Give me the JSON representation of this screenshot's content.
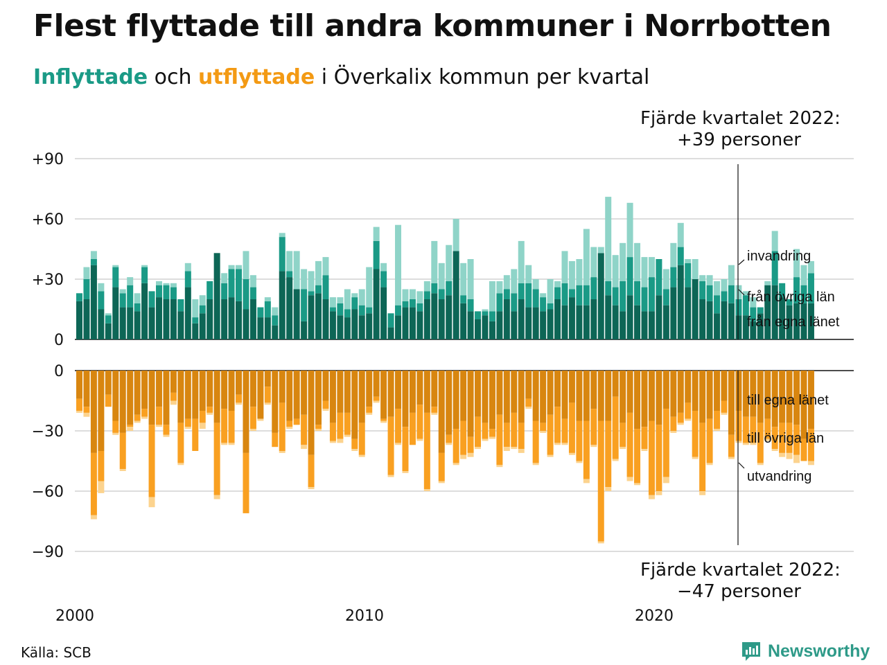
{
  "title": "Flest flyttade till andra kommuner i Norrbotten",
  "subtitle": {
    "part1": "Inflyttade",
    "part2": " och ",
    "part3": "utflyttade",
    "part4": " i Överkalix kommun per kvartal"
  },
  "annotation_top": {
    "line1": "Fjärde kvartalet 2022:",
    "line2": "+39 personer"
  },
  "annotation_bottom": {
    "line1": "Fjärde kvartalet 2022:",
    "line2": "−47 personer"
  },
  "source": "Källa: SCB",
  "brand": "Newsworthy",
  "colors": {
    "in_own_county": "#0d6656",
    "in_other_county": "#1a9a86",
    "in_immigration": "#8fd4c8",
    "out_own_county": "#d88610",
    "out_other_county": "#f9a021",
    "out_emigration": "#fcd38e",
    "brand": "#2e9a88"
  },
  "chart_data": {
    "type": "bar",
    "stacked": true,
    "x_start": "2000 Q1",
    "x_end": "2022 Q4",
    "x_ticks": [
      "2000",
      "2010",
      "2020"
    ],
    "top_panel": {
      "y_ticks": [
        "+90",
        "+60",
        "+30",
        "0"
      ],
      "ylim": [
        0,
        90
      ],
      "series": [
        {
          "name": "från egna länet",
          "values": [
            19,
            20,
            37,
            15,
            8,
            26,
            16,
            16,
            14,
            28,
            16,
            21,
            20,
            20,
            14,
            26,
            8,
            13,
            20,
            43,
            20,
            21,
            19,
            15,
            20,
            11,
            11,
            7,
            34,
            31,
            25,
            9,
            22,
            23,
            20,
            14,
            12,
            11,
            15,
            12,
            13,
            35,
            26,
            6,
            12,
            16,
            16,
            14,
            20,
            23,
            20,
            22,
            44,
            18,
            14,
            10,
            12,
            9,
            14,
            20,
            14,
            20,
            16,
            16,
            14,
            15,
            20,
            17,
            21,
            17,
            17,
            20,
            43,
            22,
            17,
            14,
            22,
            17,
            14,
            14,
            22,
            17,
            26,
            37,
            26,
            30,
            20,
            19,
            13,
            19,
            18,
            12,
            12,
            9,
            13,
            27,
            27,
            21,
            17,
            18,
            18,
            18
          ]
        },
        {
          "name": "från övriga län",
          "values": [
            4,
            10,
            3,
            9,
            4,
            10,
            7,
            11,
            4,
            8,
            8,
            6,
            7,
            6,
            6,
            8,
            3,
            4,
            9,
            0,
            8,
            14,
            16,
            15,
            6,
            5,
            8,
            5,
            17,
            3,
            0,
            16,
            2,
            4,
            12,
            2,
            6,
            4,
            6,
            5,
            3,
            14,
            8,
            7,
            5,
            3,
            4,
            4,
            4,
            5,
            5,
            7,
            0,
            4,
            6,
            4,
            2,
            5,
            9,
            5,
            9,
            8,
            12,
            9,
            7,
            3,
            6,
            11,
            4,
            10,
            10,
            11,
            0,
            7,
            9,
            15,
            19,
            12,
            12,
            17,
            18,
            8,
            10,
            9,
            12,
            0,
            9,
            8,
            9,
            5,
            9,
            8,
            10,
            7,
            3,
            0,
            17,
            7,
            3,
            13,
            9,
            15
          ]
        },
        {
          "name": "invandring",
          "values": [
            0,
            6,
            4,
            4,
            1,
            1,
            2,
            4,
            5,
            1,
            0,
            2,
            1,
            2,
            0,
            4,
            9,
            5,
            0,
            0,
            5,
            2,
            2,
            14,
            6,
            0,
            2,
            4,
            2,
            10,
            19,
            10,
            10,
            12,
            9,
            5,
            3,
            10,
            2,
            8,
            20,
            7,
            4,
            0,
            40,
            6,
            5,
            6,
            5,
            21,
            13,
            18,
            16,
            16,
            20,
            0,
            1,
            15,
            6,
            7,
            12,
            21,
            9,
            5,
            2,
            12,
            3,
            16,
            14,
            13,
            28,
            15,
            3,
            42,
            16,
            19,
            27,
            19,
            15,
            10,
            0,
            10,
            12,
            12,
            2,
            10,
            3,
            5,
            7,
            6,
            10,
            7,
            2,
            5,
            0,
            2,
            10,
            0,
            0,
            14,
            10,
            6
          ]
        }
      ]
    },
    "bottom_panel": {
      "y_ticks": [
        "0",
        "−30",
        "−60",
        "−90"
      ],
      "ylim": [
        -90,
        0
      ],
      "series": [
        {
          "name": "till egna länet",
          "values": [
            -14,
            -18,
            -41,
            -40,
            -12,
            -25,
            -31,
            -27,
            -22,
            -19,
            -27,
            -18,
            -27,
            -11,
            -26,
            -24,
            -24,
            -20,
            -18,
            -26,
            -19,
            -20,
            -12,
            -41,
            -18,
            -24,
            -8,
            -31,
            -16,
            -25,
            -24,
            -22,
            -42,
            -27,
            -15,
            -26,
            -21,
            -21,
            -34,
            -26,
            -18,
            -13,
            -24,
            -23,
            -19,
            -28,
            -21,
            -17,
            -21,
            -18,
            -41,
            -32,
            -29,
            -25,
            -33,
            -23,
            -26,
            -29,
            -22,
            -26,
            -21,
            -26,
            -14,
            -25,
            -26,
            -22,
            -18,
            -24,
            -16,
            -25,
            -25,
            -19,
            -25,
            -25,
            -13,
            -26,
            -21,
            -29,
            -28,
            -25,
            -27,
            -19,
            -23,
            -21,
            -16,
            -20,
            -26,
            -24,
            -20,
            -15,
            -32,
            -20,
            -23,
            -23,
            -26,
            -24,
            -28,
            -26,
            -26,
            -27,
            -34,
            -29
          ]
        },
        {
          "name": "till övriga län",
          "values": [
            -6,
            -3,
            -31,
            -15,
            -6,
            -6,
            -18,
            -1,
            -3,
            -4,
            -36,
            -9,
            -5,
            -4,
            -20,
            -4,
            -16,
            -6,
            -3,
            -36,
            -17,
            -16,
            -4,
            -30,
            -11,
            0,
            -8,
            -7,
            -24,
            -3,
            -3,
            -15,
            -16,
            -2,
            -4,
            -9,
            -13,
            -11,
            -5,
            -16,
            -3,
            -2,
            -1,
            -29,
            -17,
            -22,
            -16,
            -17,
            -38,
            -3,
            -14,
            -4,
            -17,
            -17,
            -8,
            -15,
            -8,
            -4,
            -25,
            -12,
            -17,
            -13,
            -4,
            -21,
            -4,
            -20,
            -18,
            -12,
            -25,
            -20,
            -29,
            -18,
            -60,
            -33,
            -31,
            -12,
            -32,
            -27,
            -11,
            -37,
            -33,
            -34,
            -7,
            -5,
            -8,
            -23,
            -34,
            -22,
            -9,
            -6,
            -11,
            -15,
            -13,
            -13,
            -20,
            -10,
            -11,
            -15,
            -15,
            -15,
            -11,
            -16
          ]
        },
        {
          "name": "utvandring",
          "values": [
            -1,
            -2,
            -2,
            -6,
            0,
            -1,
            -1,
            -2,
            -1,
            -1,
            -5,
            -1,
            -1,
            -2,
            -1,
            -1,
            0,
            -3,
            -1,
            -2,
            -1,
            -1,
            -1,
            0,
            -1,
            -1,
            -1,
            0,
            -1,
            -1,
            0,
            -2,
            -1,
            -1,
            -1,
            -1,
            -2,
            -1,
            -1,
            -1,
            -1,
            -1,
            -1,
            -1,
            -1,
            -1,
            0,
            -1,
            -1,
            -1,
            -1,
            -1,
            -1,
            -2,
            -2,
            -1,
            -1,
            -1,
            -1,
            -2,
            -1,
            -2,
            -1,
            -1,
            -1,
            -1,
            -1,
            -1,
            -1,
            -1,
            -2,
            -1,
            -1,
            -2,
            -1,
            -1,
            -2,
            -1,
            -1,
            -2,
            -2,
            -3,
            -1,
            -1,
            -1,
            -1,
            -2,
            -1,
            -1,
            -1,
            -1,
            -1,
            -1,
            -1,
            -1,
            -1,
            -1,
            -2,
            -3,
            -4,
            0,
            -2
          ]
        }
      ]
    },
    "right_labels_top": [
      "invandring",
      "från övriga län",
      "från egna länet"
    ],
    "right_labels_bottom": [
      "till egna länet",
      "till övriga län",
      "utvandring"
    ]
  }
}
